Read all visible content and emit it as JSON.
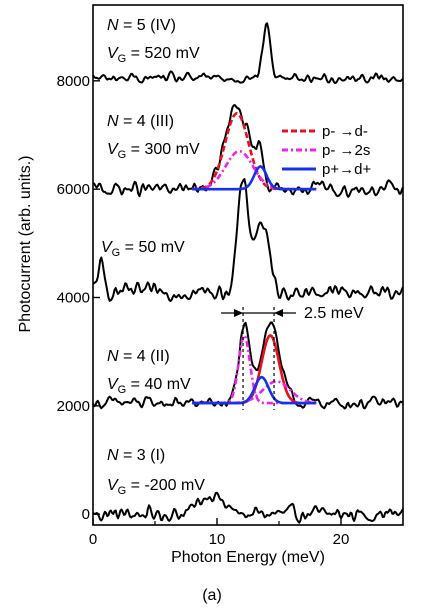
{
  "chart_data": {
    "type": "line",
    "panel_label": "(a)",
    "xlabel": "Photon Energy (meV)",
    "ylabel": "Photocurrent (arb. units.)",
    "xlim": [
      0,
      25
    ],
    "ylim": [
      -200,
      9400
    ],
    "x_ticks": [
      0,
      10,
      20
    ],
    "y_ticks": [
      0,
      2000,
      4000,
      6000,
      8000
    ],
    "grid": false,
    "legend": {
      "position": "upper-right, beside N = 4 (III) trace",
      "entries": [
        {
          "label": "p- →d-",
          "color": "#e8101f",
          "dash": "6,3"
        },
        {
          "label": "p- →2s",
          "color": "#ee22ee",
          "dash": "6,3,2,3"
        },
        {
          "label": "p+→d+",
          "color": "#1530ee",
          "dash": ""
        }
      ]
    },
    "annotation": {
      "text": "2.5 meV",
      "x_start": 12.1,
      "x_end": 14.6
    },
    "series": [
      {
        "key": "N3",
        "label_line1": "N = 3 (I)",
        "label_line2": "VG = -200 mV",
        "baseline": 0,
        "noise": 140,
        "x_max": 25,
        "peaks": [
          {
            "center": 9.5,
            "height": 380,
            "width": 0.9
          }
        ]
      },
      {
        "key": "N4II",
        "label_line1": "N = 4 (II)",
        "label_line2": "VG = 40 mV",
        "baseline": 2050,
        "noise": 110,
        "x_max": 25,
        "peaks": [
          {
            "center": 12.2,
            "height": 1350,
            "width": 0.45
          },
          {
            "center": 14.3,
            "height": 1500,
            "width": 0.75
          }
        ],
        "components": [
          {
            "color": "#e8101f",
            "dash": "",
            "center": 14.3,
            "height": 1250,
            "width": 0.7
          },
          {
            "color": "#ee22ee",
            "dash": "6,3,2,3",
            "center": 12.2,
            "height": 1250,
            "width": 0.45
          },
          {
            "color": "#ee22ee",
            "dash": "6,3,2,3",
            "center": 14.8,
            "height": 400,
            "width": 1.1
          },
          {
            "color": "#1530ee",
            "dash": "",
            "center": 13.6,
            "height": 480,
            "width": 0.55
          }
        ]
      },
      {
        "key": "V50",
        "label_line1": "",
        "label_line2": "VG = 50 mV",
        "baseline": 4100,
        "noise": 140,
        "x_max": 25,
        "peaks": [
          {
            "center": 12.1,
            "height": 2000,
            "width": 0.45
          },
          {
            "center": 13.6,
            "height": 1300,
            "width": 0.55
          },
          {
            "center": 0.6,
            "height": 500,
            "width": 0.25
          }
        ]
      },
      {
        "key": "N4III",
        "label_line1": "N = 4 (III)",
        "label_line2": "VG = 300 mV",
        "baseline": 6000,
        "noise": 130,
        "x_max": 25,
        "peaks": [
          {
            "center": 11.6,
            "height": 1500,
            "width": 0.95
          },
          {
            "center": 13.5,
            "height": 550,
            "width": 0.35
          }
        ],
        "components": [
          {
            "color": "#e8101f",
            "dash": "6,3",
            "center": 11.6,
            "height": 1400,
            "width": 0.95
          },
          {
            "color": "#ee22ee",
            "dash": "6,3,2,3",
            "center": 11.8,
            "height": 700,
            "width": 1.1
          },
          {
            "color": "#1530ee",
            "dash": "",
            "center": 13.5,
            "height": 420,
            "width": 0.5
          }
        ]
      },
      {
        "key": "N5",
        "label_line1": "N = 5 (IV)",
        "label_line2": "VG = 520 mV",
        "baseline": 8050,
        "noise": 90,
        "x_max": 25,
        "peaks": [
          {
            "center": 14.0,
            "height": 1000,
            "width": 0.3
          }
        ]
      }
    ]
  }
}
